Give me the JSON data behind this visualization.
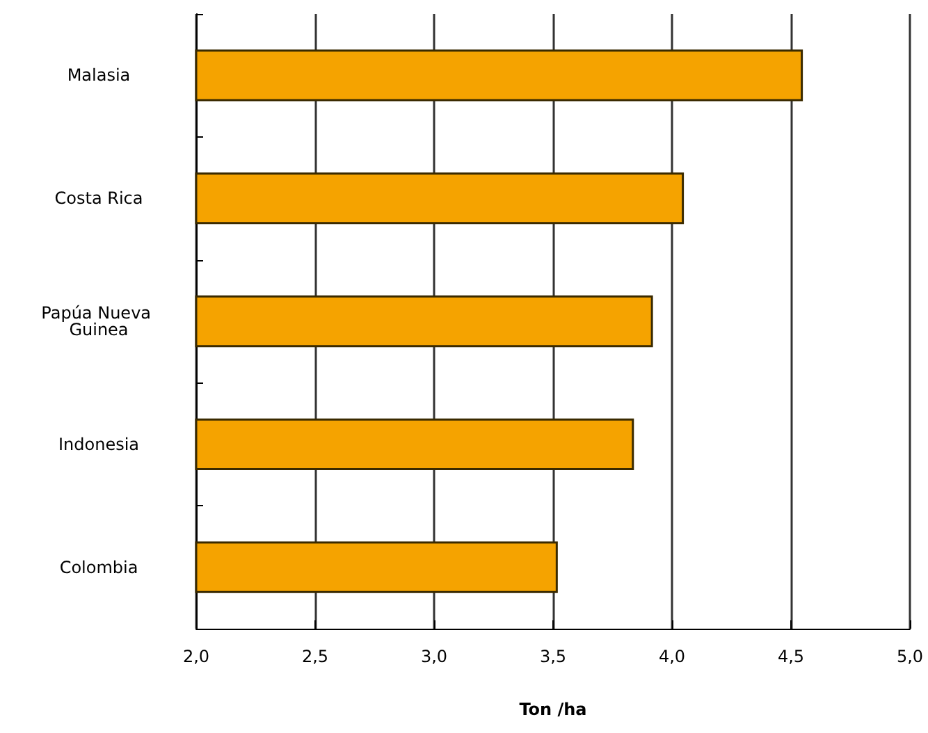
{
  "chart_data": {
    "type": "bar",
    "orientation": "horizontal",
    "xlabel": "Ton /ha",
    "categories": [
      "Malasia",
      "Costa Rica",
      "Papúa Nueva Guinea",
      "Indonesia",
      "Colombia"
    ],
    "values": [
      4.55,
      4.05,
      3.92,
      3.84,
      3.52
    ],
    "color": "#f5a300",
    "xlim": [
      2,
      5
    ],
    "xticks": [
      {
        "value": 2,
        "label": "2,0"
      },
      {
        "value": 2.5,
        "label": "2,5"
      },
      {
        "value": 3,
        "label": "3,0"
      },
      {
        "value": 3.5,
        "label": "3,5"
      },
      {
        "value": 4,
        "label": "4,0"
      },
      {
        "value": 4.5,
        "label": "4,5"
      },
      {
        "value": 5,
        "label": "5,0"
      }
    ],
    "grid": "x"
  }
}
